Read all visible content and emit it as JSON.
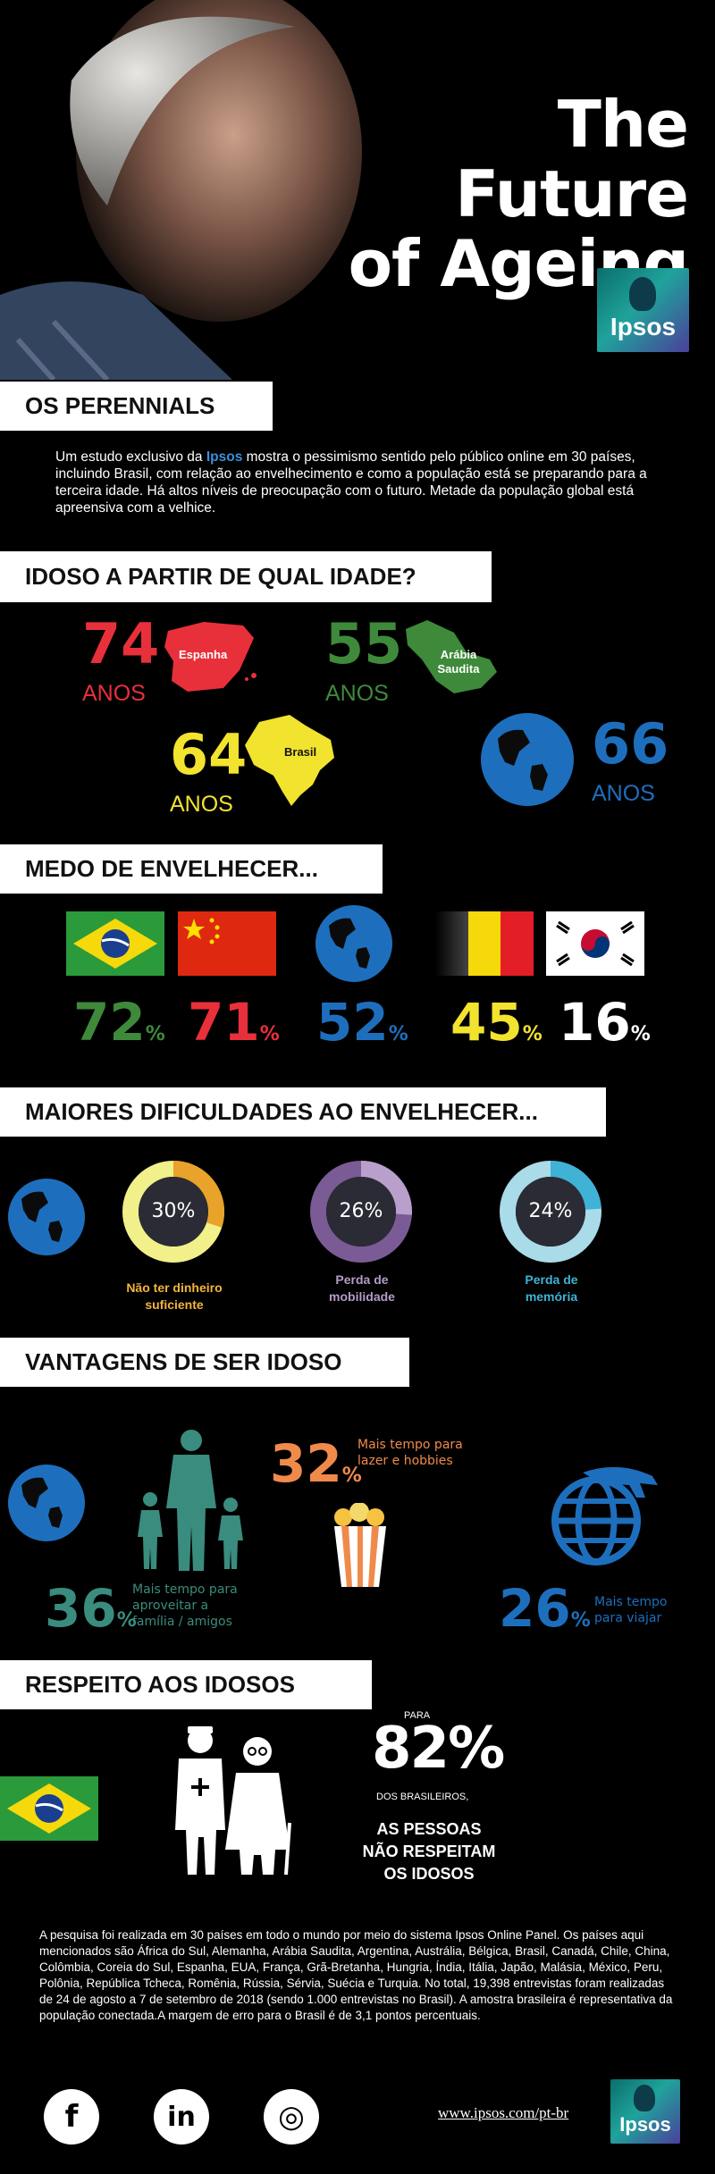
{
  "header": {
    "title_line1": "The Future",
    "title_line2": "of Ageing",
    "logo_text": "Ipsos"
  },
  "perennials": {
    "heading": "OS PERENNIALS",
    "intro_before": "Um estudo exclusivo da ",
    "intro_highlight": "Ipsos",
    "intro_after": " mostra o pessimismo sentido pelo público online em 30 países, incluindo Brasil, com relação ao envelhecimento e como a população está se preparando para a terceira idade. Há altos níveis de preocupação com o futuro. Metade da população global está apreensiva com a velhice."
  },
  "idade": {
    "heading": "IDOSO A PARTIR DE QUAL IDADE?",
    "unit": "ANOS",
    "items": [
      {
        "value": "74",
        "country": "Espanha",
        "color": "#e8303a"
      },
      {
        "value": "55",
        "country": "Arábia\nSaudita",
        "color": "#3e8a3a"
      },
      {
        "value": "64",
        "country": "Brasil",
        "color": "#f2e32e"
      },
      {
        "value": "66",
        "country": "",
        "color": "#1d6fbd"
      }
    ]
  },
  "medo": {
    "heading": "MEDO DE ENVELHECER...",
    "items": [
      {
        "value": "72",
        "unit": "%",
        "flag": "brazil-flag",
        "color": "#3e8a3a"
      },
      {
        "value": "71",
        "unit": "%",
        "flag": "china-flag",
        "color": "#e8303a"
      },
      {
        "value": "52",
        "unit": "%",
        "flag": "globe",
        "color": "#1d6fbd"
      },
      {
        "value": "45",
        "unit": "%",
        "flag": "belgium-flag",
        "color": "#f2e32e"
      },
      {
        "value": "16",
        "unit": "%",
        "flag": "korea-flag",
        "color": "#ffffff"
      }
    ]
  },
  "dificuldades": {
    "heading": "MAIORES DIFICULDADES AO ENVELHECER...",
    "items": [
      {
        "value": "30%",
        "fraction": 0.3,
        "label_line1": "Não ter dinheiro",
        "label_line2": "suficiente",
        "ring": "#f1f08a",
        "fill": "#e9a22a",
        "label_color": "#f2b53a"
      },
      {
        "value": "26%",
        "fraction": 0.26,
        "label_line1": "Perda de",
        "label_line2": "mobilidade",
        "ring": "#7b5b95",
        "fill": "#b9a0cc",
        "label_color": "#b49bc8"
      },
      {
        "value": "24%",
        "fraction": 0.24,
        "label_line1": "Perda de",
        "label_line2": "memória",
        "ring": "#a9dbe9",
        "fill": "#3fb2d6",
        "label_color": "#3fb2d6"
      }
    ]
  },
  "vantagens": {
    "heading": "VANTAGENS DE SER IDOSO",
    "items": [
      {
        "value": "36",
        "unit": "%",
        "label_line1": "Mais tempo para",
        "label_line2": "aproveitar a",
        "label_line3": "família / amigos",
        "color": "#3a8c7e"
      },
      {
        "value": "32",
        "unit": "%",
        "label_line1": "Mais tempo para",
        "label_line2": "lazer e hobbies",
        "label_line3": "",
        "color": "#f08a4b"
      },
      {
        "value": "26",
        "unit": "%",
        "label_line1": "Mais tempo",
        "label_line2": "para viajar",
        "label_line3": "",
        "color": "#1d6fbd"
      }
    ]
  },
  "respeito": {
    "heading": "RESPEITO AOS IDOSOS",
    "para": "PARA",
    "value": "82%",
    "sub": "DOS BRASILEIROS,",
    "line1": "AS PESSOAS",
    "line2": "NÃO RESPEITAM",
    "line3": "OS IDOSOS"
  },
  "footnote": "A pesquisa foi realizada em 30 países em todo o mundo por meio do sistema Ipsos Online Panel. Os países aqui mencionados são África do Sul, Alemanha, Arábia Saudita, Argentina, Austrália, Bélgica, Brasil, Canadá, Chile, China, Colômbia, Coreia do Sul, Espanha, EUA, França, Grã-Bretanha, Hungria, Índia, Itália, Japão, Malásia, México, Peru, Polônia, República Tcheca, Romênia, Rússia, Sérvia, Suécia e Turquia. No total, 19,398 entrevistas foram realizadas de 24 de agosto a 7 de setembro de 2018 (sendo 1.000 entrevistas no Brasil).  A amostra brasileira é representativa da população conectada.A margem de erro para o Brasil é de 3,1 pontos percentuais.",
  "footer": {
    "url": "www.ipsos.com/pt-br",
    "logo_text": "Ipsos",
    "social": [
      {
        "name": "facebook-icon",
        "glyph": "f"
      },
      {
        "name": "linkedin-icon",
        "glyph": "in"
      },
      {
        "name": "instagram-icon",
        "glyph": "◎"
      }
    ]
  }
}
